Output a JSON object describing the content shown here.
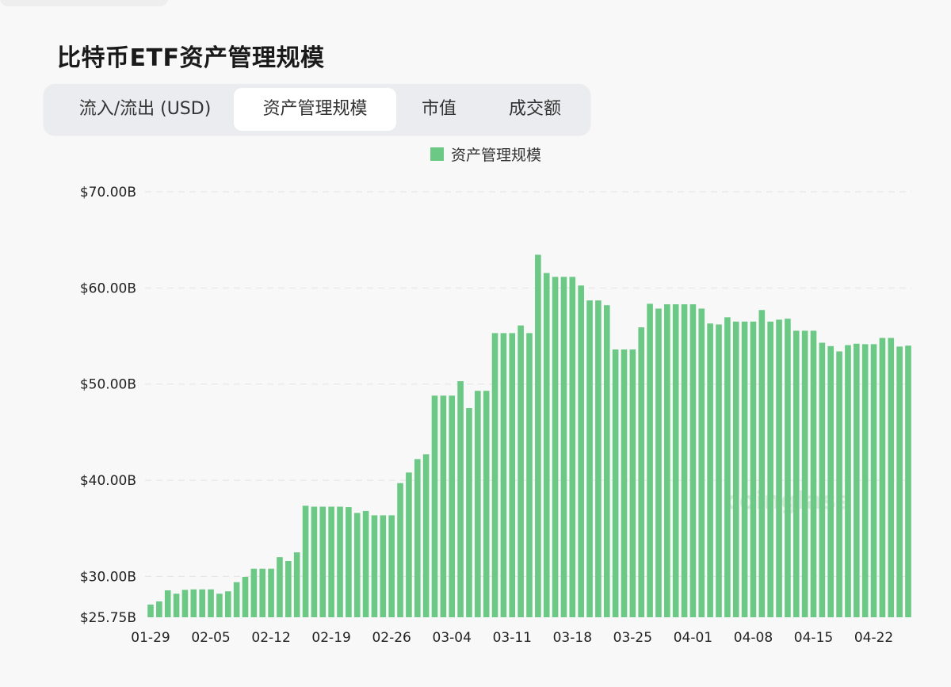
{
  "title": "比特币ETF资产管理规模",
  "tabs": [
    {
      "label": "流入/流出 (USD)",
      "active": false
    },
    {
      "label": "资产管理规模",
      "active": true
    },
    {
      "label": "市值",
      "active": false
    },
    {
      "label": "成交额",
      "active": false
    }
  ],
  "watermark": "coinglass",
  "colors": {
    "bar": "#6bc985",
    "grid": "#e2e2e2"
  },
  "chart_data": {
    "type": "bar",
    "title": "比特币ETF资产管理规模",
    "legend": [
      "资产管理规模"
    ],
    "legend_position": "top-center",
    "ylabel": "",
    "xlabel": "",
    "ylim": [
      25.75,
      70
    ],
    "unit": "B USD",
    "yticks": [
      {
        "value": 70,
        "label": "$70.00B"
      },
      {
        "value": 60,
        "label": "$60.00B"
      },
      {
        "value": 50,
        "label": "$50.00B"
      },
      {
        "value": 40,
        "label": "$40.00B"
      },
      {
        "value": 30,
        "label": "$30.00B"
      },
      {
        "value": 25.75,
        "label": "$25.75B"
      }
    ],
    "xticks": [
      "01-29",
      "02-05",
      "02-12",
      "02-19",
      "02-26",
      "03-04",
      "03-11",
      "03-18",
      "03-25",
      "04-01",
      "04-08",
      "04-15",
      "04-22"
    ],
    "grid": true,
    "categories": [
      "01-29",
      "01-30",
      "01-31",
      "02-01",
      "02-02",
      "02-03",
      "02-04",
      "02-05",
      "02-06",
      "02-07",
      "02-08",
      "02-09",
      "02-10",
      "02-11",
      "02-12",
      "02-13",
      "02-14",
      "02-15",
      "02-16",
      "02-17",
      "02-18",
      "02-19",
      "02-20",
      "02-21",
      "02-22",
      "02-23",
      "02-24",
      "02-25",
      "02-26",
      "02-27",
      "02-28",
      "02-29",
      "03-01",
      "03-02",
      "03-03",
      "03-04",
      "03-05",
      "03-06",
      "03-07",
      "03-08",
      "03-09",
      "03-10",
      "03-11",
      "03-12",
      "03-13",
      "03-14",
      "03-15",
      "03-16",
      "03-17",
      "03-18",
      "03-19",
      "03-20",
      "03-21",
      "03-22",
      "03-23",
      "03-24",
      "03-25",
      "03-26",
      "03-27",
      "03-28",
      "03-29",
      "03-30",
      "03-31",
      "04-01",
      "04-02",
      "04-03",
      "04-04",
      "04-05",
      "04-06",
      "04-07",
      "04-08",
      "04-09",
      "04-10",
      "04-11",
      "04-12",
      "04-13",
      "04-14",
      "04-15",
      "04-16",
      "04-17",
      "04-18",
      "04-19",
      "04-20",
      "04-21",
      "04-22",
      "04-23",
      "04-24",
      "04-25",
      "04-26"
    ],
    "values": [
      27.07,
      27.4,
      28.55,
      28.2,
      28.6,
      28.65,
      28.65,
      28.65,
      28.2,
      28.45,
      29.4,
      29.95,
      30.8,
      30.8,
      30.8,
      32.0,
      31.6,
      32.5,
      37.35,
      37.25,
      37.25,
      37.25,
      37.25,
      37.2,
      36.6,
      36.8,
      36.35,
      36.35,
      36.35,
      39.7,
      40.8,
      42.2,
      42.7,
      48.8,
      48.8,
      48.8,
      50.3,
      47.5,
      49.3,
      49.3,
      55.3,
      55.3,
      55.3,
      56.1,
      55.3,
      63.45,
      61.55,
      61.15,
      61.15,
      61.15,
      60.25,
      58.7,
      58.7,
      58.2,
      53.6,
      53.6,
      53.6,
      55.9,
      58.35,
      57.85,
      58.3,
      58.3,
      58.3,
      58.3,
      57.85,
      56.3,
      56.2,
      56.95,
      56.5,
      56.5,
      56.5,
      57.7,
      56.5,
      56.7,
      56.8,
      55.55,
      55.55,
      55.55,
      54.3,
      53.95,
      53.4,
      54.05,
      54.2,
      54.15,
      54.15,
      54.8,
      54.8,
      53.9,
      54.0
    ]
  }
}
